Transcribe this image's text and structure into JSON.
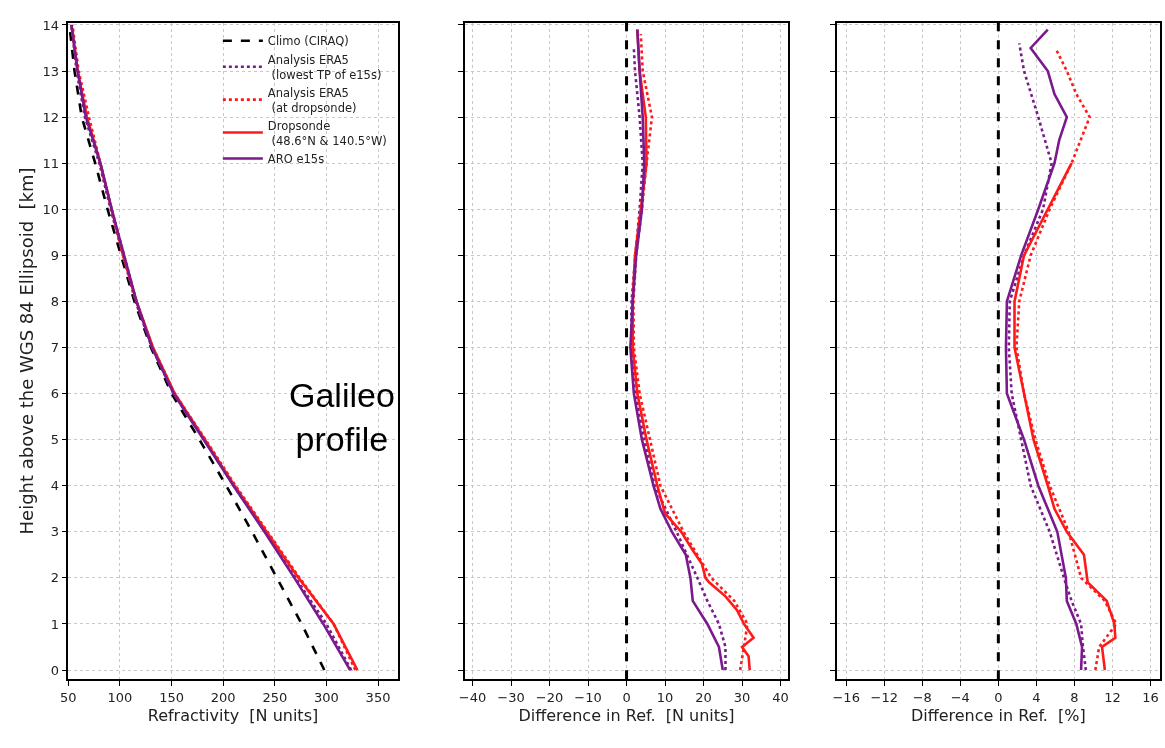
{
  "chart_data": [
    {
      "type": "line",
      "xlabel": "Refractivity  [N units]",
      "ylabel": "Height above the WGS 84 Ellipsoid  [km]",
      "xlim": [
        50,
        369
      ],
      "xticks": [
        50,
        100,
        150,
        200,
        250,
        300,
        350
      ],
      "ylim": [
        -0.2,
        14.05
      ],
      "yticks": [
        0,
        1,
        2,
        3,
        4,
        5,
        6,
        7,
        8,
        9,
        10,
        11,
        12,
        13,
        14
      ],
      "grid": true,
      "legend": "top right",
      "annotations": [
        "Galileo\nprofile"
      ],
      "series": [
        {
          "name": "Climo (CIRAQ)",
          "color": "#000000",
          "line_style": "dashed",
          "x": [
            298,
            276,
            252,
            228,
            203,
            177,
            150,
            130,
            114,
            101,
            88,
            76,
            63,
            56,
            51
          ],
          "values": [
            0,
            1,
            2,
            3,
            4,
            5,
            6,
            7,
            8,
            9,
            10,
            11,
            12,
            13,
            14
          ]
        },
        {
          "name": "Analysis ERA5\n (lowest TP of e15s)",
          "color": "#7a1a8c",
          "line_style": "dotted",
          "x": [
            324,
            300,
            270,
            241,
            210,
            182,
            152,
            131,
            115,
            103,
            91,
            80,
            66,
            58,
            53
          ],
          "values": [
            0,
            1,
            2,
            3,
            4,
            5,
            6,
            7,
            8,
            9,
            10,
            11,
            12,
            13,
            14
          ]
        },
        {
          "name": "Analysis ERA5\n (at dropsonde)",
          "color": "#ff1a1a",
          "line_style": "dotted",
          "x": [
            328,
            307,
            274,
            243,
            212,
            183,
            153,
            132,
            116,
            104,
            92,
            81,
            70,
            60,
            54
          ],
          "values": [
            0,
            1,
            2,
            3,
            4,
            5,
            6,
            7,
            8,
            9,
            10,
            11,
            12,
            13,
            14
          ]
        },
        {
          "name": "Dropsonde\n (48.6°N & 140.5°W)",
          "color": "#ff1a1a",
          "line_style": "solid",
          "x": [
            330,
            307,
            273,
            242,
            211,
            182,
            153,
            132,
            116,
            103,
            92,
            81,
            68,
            59,
            53
          ],
          "values": [
            0,
            1,
            2,
            3,
            4,
            5,
            6,
            7,
            8,
            9,
            10,
            11,
            12,
            13,
            14
          ]
        },
        {
          "name": "ARO e15s",
          "color": "#7a1a8c",
          "line_style": "solid",
          "x": [
            323,
            297,
            269,
            240,
            210,
            181,
            152,
            131,
            116,
            104,
            92,
            81,
            67,
            59,
            53
          ],
          "values": [
            0,
            1,
            2,
            3,
            4,
            5,
            6,
            7,
            8,
            9,
            10,
            11,
            12,
            13,
            14
          ]
        }
      ]
    },
    {
      "type": "line",
      "xlabel": "Difference in Ref.  [N units]",
      "xlim": [
        -42,
        42
      ],
      "xticks": [
        -40,
        -30,
        -20,
        -10,
        0,
        10,
        20,
        30,
        40
      ],
      "ylim": [
        -0.2,
        14.05
      ],
      "yticks": [
        0,
        1,
        2,
        3,
        4,
        5,
        6,
        7,
        8,
        9,
        10,
        11,
        12,
        13,
        14
      ],
      "tick_labels": "x",
      "grid": true,
      "ref_lines": [
        {
          "axis": "x",
          "value": 0,
          "color": "#000000",
          "line_style": "dashed"
        }
      ],
      "series": [
        {
          "color": "#7a1a8c",
          "line_style": "dotted",
          "x": [
            25.7,
            25.7,
            24,
            21,
            18.4,
            13,
            7.3,
            4.6,
            2.2,
            1.2,
            1.3,
            2.3,
            3.4,
            4.2,
            3.4,
            2.8,
            2.2,
            1.9
          ],
          "values": [
            0,
            0.5,
            1,
            1.5,
            2,
            3,
            4,
            5,
            6,
            7,
            8,
            9,
            10,
            11,
            12,
            12.5,
            13,
            13.5
          ]
        },
        {
          "color": "#ff1a1a",
          "line_style": "dotted",
          "x": [
            29.5,
            30.5,
            31.4,
            28,
            22,
            14.8,
            8.8,
            6.1,
            3.4,
            1.9,
            1.8,
            2.5,
            4,
            5.2,
            6.6,
            4.2,
            3.7
          ],
          "values": [
            0,
            0.5,
            1,
            1.5,
            2,
            3,
            4,
            5,
            6,
            7,
            8,
            9,
            10,
            11,
            12,
            13,
            13.8
          ]
        },
        {
          "color": "#ff1a1a",
          "line_style": "solid",
          "x": [
            32,
            31.7,
            30,
            33,
            30.5,
            28.7,
            25.7,
            21.5,
            20.5,
            19.6,
            17.2,
            14.2,
            10,
            8,
            5.2,
            2.8,
            1.6,
            1.6,
            2.2,
            3.7,
            5.2,
            5,
            3.4,
            2.8
          ],
          "values": [
            0,
            0.3,
            0.5,
            0.7,
            1,
            1.3,
            1.6,
            1.9,
            2,
            2.3,
            2.6,
            3,
            3.4,
            4,
            5,
            6,
            7,
            8,
            9,
            10,
            11,
            12,
            13,
            13.9
          ]
        },
        {
          "color": "#7a1a8c",
          "line_style": "solid",
          "x": [
            25,
            24,
            21,
            17.2,
            16.6,
            15.4,
            11.8,
            8.8,
            7,
            4,
            1.9,
            1,
            1.6,
            2.5,
            4,
            4.6,
            4.2,
            3.4,
            2.8
          ],
          "values": [
            0,
            0.5,
            1,
            1.5,
            2,
            2.5,
            3,
            3.5,
            4,
            5,
            6,
            7,
            8,
            9,
            10,
            11,
            12,
            13,
            13.9
          ]
        }
      ]
    },
    {
      "type": "line",
      "xlabel": "Difference in Ref.  [%]",
      "xlim": [
        -17,
        17
      ],
      "xticks": [
        -16,
        -12,
        -8,
        -4,
        0,
        4,
        8,
        12,
        16
      ],
      "ylim": [
        -0.2,
        14.05
      ],
      "yticks": [
        0,
        1,
        2,
        3,
        4,
        5,
        6,
        7,
        8,
        9,
        10,
        11,
        12,
        13,
        14
      ],
      "tick_labels": "x",
      "grid": true,
      "ref_lines": [
        {
          "axis": "x",
          "value": 0,
          "color": "#000000",
          "line_style": "dashed"
        }
      ],
      "series": [
        {
          "color": "#7a1a8c",
          "line_style": "dotted",
          "x": [
            9.2,
            8.9,
            8.7,
            7.7,
            6.9,
            5.4,
            3.4,
            2.4,
            1.4,
            1.1,
            1.2,
            2.7,
            4.7,
            5.6,
            4.2,
            2.7,
            2.2
          ],
          "values": [
            0,
            0.5,
            1,
            1.5,
            2,
            3,
            4,
            5,
            6,
            7,
            8,
            9,
            10,
            11,
            12,
            13,
            13.6
          ]
        },
        {
          "color": "#ff1a1a",
          "line_style": "dotted",
          "x": [
            10.2,
            10.6,
            12.4,
            11.2,
            8.7,
            7.4,
            5.4,
            3.9,
            2.7,
            1.9,
            2.2,
            3.4,
            5.4,
            7.7,
            9.6,
            8.2,
            7.2,
            6
          ],
          "values": [
            0,
            0.5,
            1,
            1.5,
            2,
            3,
            4,
            5,
            6,
            7,
            8,
            9,
            10,
            11,
            12,
            12.5,
            13,
            13.5
          ]
        },
        {
          "color": "#ff1a1a",
          "line_style": "solid",
          "x": [
            11.2,
            10.9,
            12.3,
            12.2,
            11.4,
            9.4,
            9,
            7.2,
            5.9,
            5.2,
            3.7,
            2.7,
            1.7,
            1.7,
            2.7,
            5.2,
            7.7
          ],
          "values": [
            0,
            0.5,
            0.7,
            1,
            1.5,
            1.9,
            2.5,
            3,
            3.5,
            4,
            5,
            6,
            7,
            8,
            9,
            10,
            11
          ]
        },
        {
          "color": "#7a1a8c",
          "line_style": "solid",
          "x": [
            8.7,
            8.8,
            8.2,
            7.2,
            7.1,
            6.2,
            4.2,
            2.7,
            0.9,
            0.8,
            0.9,
            2.4,
            4.2,
            5.9,
            6.4,
            7.2,
            5.9,
            5.2,
            3.4,
            5.2
          ],
          "values": [
            0,
            0.5,
            1,
            1.5,
            2,
            3,
            4,
            5,
            6,
            7,
            8,
            9,
            10,
            11,
            11.5,
            12,
            12.5,
            13,
            13.5,
            13.9
          ]
        }
      ]
    }
  ]
}
